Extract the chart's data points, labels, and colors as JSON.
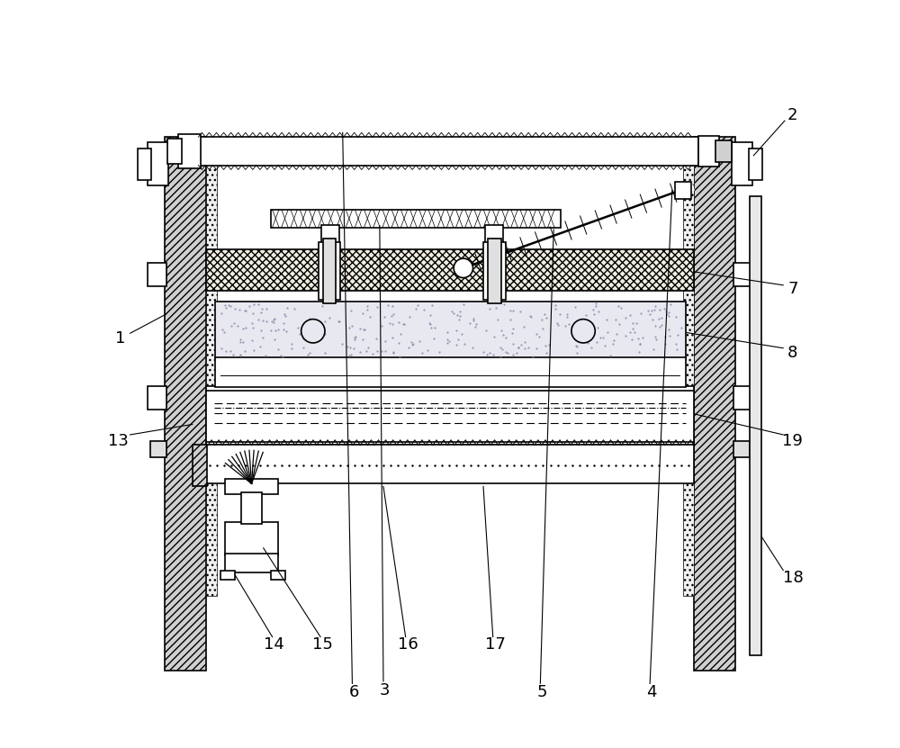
{
  "bg_color": "#ffffff",
  "line_color": "#000000",
  "fig_width": 10.0,
  "fig_height": 8.31,
  "dpi": 100
}
